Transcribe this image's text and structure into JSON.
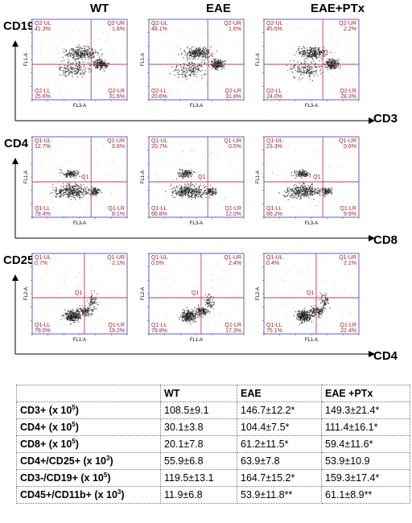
{
  "columns": [
    "WT",
    "EAE",
    "EAE+PTx"
  ],
  "rows": [
    {
      "y_axis": "CD19",
      "x_axis": "CD3",
      "fl_y": "FL1-A",
      "fl_x": "FL3-A",
      "quadrant_prefix": "Q2",
      "gate": "",
      "panels": [
        {
          "UL": "Q2-UL",
          "UL_pct": "41.3%",
          "UR": "Q2-UR",
          "UR_pct": "1.6%",
          "LL": "Q2-LL",
          "LL_pct": "25.6%",
          "LR": "Q2-LR",
          "LR_pct": "31.6%"
        },
        {
          "UL": "Q2-UL",
          "UL_pct": "46.1%",
          "UR": "Q2-UR",
          "UR_pct": "1.6%",
          "LL": "Q2-LL",
          "LL_pct": "20.6%",
          "LR": "Q2-LR",
          "LR_pct": "31.8%"
        },
        {
          "UL": "Q2-UL",
          "UL_pct": "45.5%",
          "UR": "Q2-UR",
          "UR_pct": "2.2%",
          "LL": "Q2-LL",
          "LL_pct": "24.0%",
          "LR": "Q2-LR",
          "LR_pct": "28.3%"
        }
      ]
    },
    {
      "y_axis": "CD4",
      "x_axis": "CD8",
      "fl_y": "FL1-A",
      "fl_x": "FL3-A",
      "gate": "Q1",
      "panels": [
        {
          "UL": "Q1-UL",
          "UL_pct": "12.7%",
          "UR": "Q1-UR",
          "UR_pct": "0.8%",
          "LL": "Q1-LL",
          "LL_pct": "78.4%",
          "LR": "Q1-LR",
          "LR_pct": "8.1%"
        },
        {
          "UL": "Q1-UL",
          "UL_pct": "20.7%",
          "UR": "Q1-UR",
          "UR_pct": "0.5%",
          "LL": "Q1-LL",
          "LL_pct": "66.8%",
          "LR": "Q1-LR",
          "LR_pct": "12.0%"
        },
        {
          "UL": "Q1-UL",
          "UL_pct": "23.3%",
          "UR": "Q1-UR",
          "UR_pct": "0.6%",
          "LL": "Q1-LL",
          "LL_pct": "66.2%",
          "LR": "Q1-LR",
          "LR_pct": "9.9%"
        }
      ]
    },
    {
      "y_axis": "CD25",
      "x_axis": "CD4",
      "fl_y": "FL2-A",
      "fl_x": "FL1-A",
      "gate": "Q1",
      "panels": [
        {
          "UL": "Q1-UL",
          "UL_pct": "0.7%",
          "UR": "Q1-UR",
          "UR_pct": "2.1%",
          "LL": "Q1-LL",
          "LL_pct": "78.0%",
          "LR": "Q1-LR",
          "LR_pct": "19.2%"
        },
        {
          "UL": "Q1-UL",
          "UL_pct": "0.5%",
          "UR": "Q1-UR",
          "UR_pct": "2.4%",
          "LL": "Q1-LL",
          "LL_pct": "79.8%",
          "LR": "Q1-LR",
          "LR_pct": "17.3%"
        },
        {
          "UL": "Q1-UL",
          "UL_pct": "0.4%",
          "UR": "Q1-UR",
          "UR_pct": "2.1%",
          "LL": "Q1-LL",
          "LL_pct": "75.1%",
          "LR": "Q1-LR",
          "LR_pct": "22.4%"
        }
      ]
    }
  ],
  "table": {
    "headers": [
      "",
      "WT",
      "EAE",
      "EAE +PTx"
    ],
    "rows": [
      {
        "label": "CD3+ (x 10",
        "exp": "5",
        "label_end": ")",
        "wt": "108.5±9.1",
        "eae": "146.7±12.2*",
        "eae_ptx": "149.3±21.4*"
      },
      {
        "label": "CD4+ (x 10",
        "exp": "5",
        "label_end": ")",
        "wt": "30.1±3.8",
        "eae": "104.4±7.5*",
        "eae_ptx": "111.4±16.1*"
      },
      {
        "label": "CD8+ (x 10",
        "exp": "5",
        "label_end": ")",
        "wt": "20.1±7.8",
        "eae": "61.2±11.5*",
        "eae_ptx": "59.4±11.6*"
      },
      {
        "label": "CD4+/CD25+ (x 10",
        "exp": "3",
        "label_end": ")",
        "wt": "55.9±6.8",
        "eae": "63.9±7.8",
        "eae_ptx": "53.9±10.9"
      },
      {
        "label": "CD3-/CD19+ (x 10",
        "exp": "5",
        "label_end": ")",
        "wt": "119.5±13.1",
        "eae": "164.7±15.2*",
        "eae_ptx": "159.3±17.4*"
      },
      {
        "label": "CD45+/CD11b+ (x 10",
        "exp": "3",
        "label_end": ")",
        "wt": "11.9±6.8",
        "eae": "53.9±11.8**",
        "eae_ptx": "61.1±8.9**"
      }
    ]
  },
  "colors": {
    "quadrant": "#c2395a",
    "label": "#a0252e",
    "frame": "#3a3aa8",
    "dots": "#222222"
  }
}
